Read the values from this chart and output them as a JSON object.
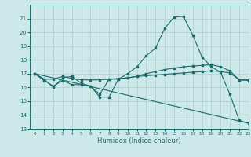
{
  "bg_color": "#cde8e8",
  "grid_color": "#b0cccc",
  "line_color": "#1a6b6b",
  "xlabel": "Humidex (Indice chaleur)",
  "ylim": [
    13,
    22
  ],
  "xlim": [
    -0.5,
    23
  ],
  "yticks": [
    13,
    14,
    15,
    16,
    17,
    18,
    19,
    20,
    21
  ],
  "xticks": [
    0,
    1,
    2,
    3,
    4,
    5,
    6,
    7,
    8,
    9,
    10,
    11,
    12,
    13,
    14,
    15,
    16,
    17,
    18,
    19,
    20,
    21,
    22,
    23
  ],
  "lines": [
    {
      "x": [
        0,
        1,
        2,
        3,
        4,
        5,
        6,
        7,
        8,
        9,
        10,
        11,
        12,
        13,
        14,
        15,
        16,
        17,
        18,
        19,
        20,
        21,
        22,
        23
      ],
      "y": [
        17.0,
        16.6,
        16.0,
        16.7,
        16.8,
        16.3,
        16.1,
        15.3,
        15.3,
        16.6,
        17.0,
        17.5,
        18.3,
        18.85,
        20.3,
        21.1,
        21.15,
        19.8,
        18.2,
        17.5,
        17.1,
        15.5,
        13.6,
        13.4
      ],
      "has_markers": true
    },
    {
      "x": [
        0,
        1,
        2,
        3,
        4,
        5,
        6,
        7,
        8,
        9,
        10,
        11,
        12,
        13,
        14,
        15,
        16,
        17,
        18,
        19,
        20,
        21,
        22,
        23
      ],
      "y": [
        17.0,
        16.6,
        16.6,
        16.8,
        16.65,
        16.55,
        16.55,
        16.55,
        16.6,
        16.65,
        16.7,
        16.8,
        17.0,
        17.15,
        17.3,
        17.4,
        17.5,
        17.55,
        17.6,
        17.65,
        17.5,
        17.2,
        16.55,
        16.55
      ],
      "has_markers": true
    },
    {
      "x": [
        0,
        1,
        2,
        3,
        4,
        5,
        6,
        7,
        8,
        9,
        10,
        11,
        12,
        13,
        14,
        15,
        16,
        17,
        18,
        19,
        20,
        21,
        22,
        23
      ],
      "y": [
        17.0,
        16.5,
        16.1,
        16.5,
        16.2,
        16.2,
        16.1,
        15.5,
        16.6,
        16.6,
        16.7,
        16.8,
        16.85,
        16.9,
        16.95,
        17.0,
        17.05,
        17.1,
        17.15,
        17.2,
        17.15,
        17.05,
        16.55,
        16.5
      ],
      "has_markers": true
    },
    {
      "x": [
        0,
        23
      ],
      "y": [
        17.0,
        13.4
      ],
      "has_markers": false
    }
  ]
}
